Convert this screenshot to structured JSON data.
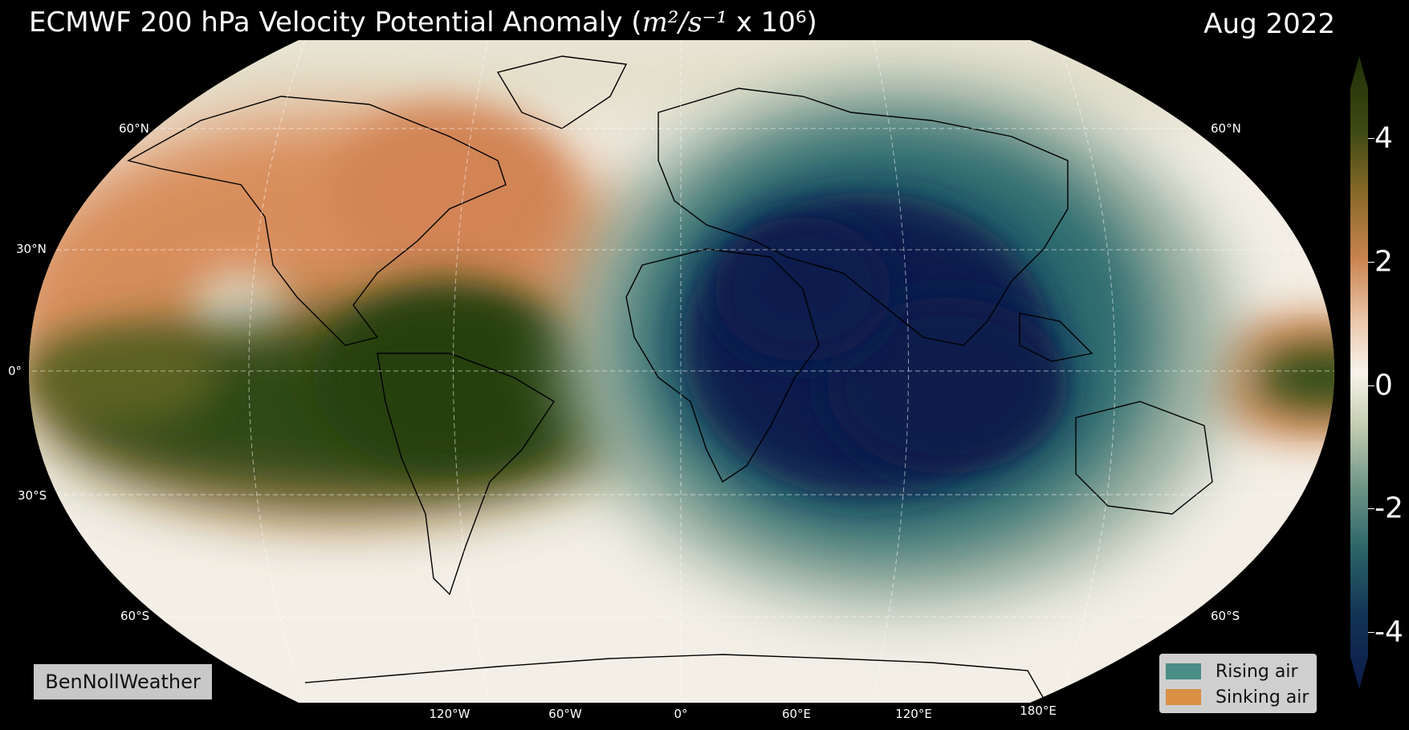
{
  "title": {
    "prefix": "ECMWF 200 hPa Velocity Potential Anomaly (",
    "units_math": "m²/s⁻¹",
    "suffix": " x 10⁶)"
  },
  "date": "Aug 2022",
  "lat_labels": {
    "n60_left": "60°N",
    "n60_right": "60°N",
    "n30_left": "30°N",
    "eq_left": "0°",
    "s30_left": "30°S",
    "s60_left": "60°S",
    "s60_right": "60°S"
  },
  "lon_labels": [
    "120°W",
    "60°W",
    "0°",
    "60°E",
    "120°E",
    "180°E"
  ],
  "colorbar": {
    "ticks": [
      "4",
      "2",
      "0",
      "-2",
      "-4"
    ],
    "range": [
      -5,
      5
    ],
    "colors": {
      "negative": "#0f1d4e",
      "mid": "#f6f1e8",
      "positive": "#2c4710",
      "orange": "#d4895a",
      "teal": "#2e6d70"
    }
  },
  "credit": "BenNollWeather",
  "legend": {
    "items": [
      {
        "label": "Rising air",
        "color": "#4a8d86"
      },
      {
        "label": "Sinking air",
        "color": "#d98f44"
      }
    ]
  }
}
